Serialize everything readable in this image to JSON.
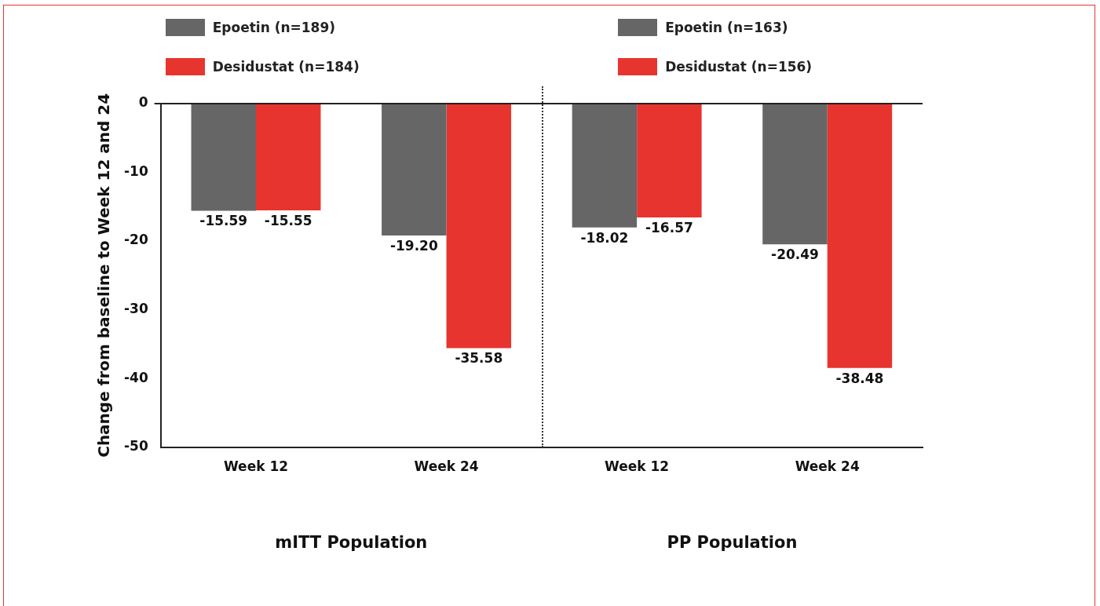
{
  "chart_data": {
    "type": "bar",
    "ylabel": "Change from baseline to Week 12 and 24",
    "categories": [
      "Week 12",
      "Week 24",
      "Week 12",
      "Week 24"
    ],
    "series": [
      {
        "name": "Epoetin (n=189)",
        "color": "#666666",
        "values": [
          -15.59,
          -19.2,
          null,
          null
        ],
        "value_labels": [
          "-15.59",
          "-19.20",
          null,
          null
        ]
      },
      {
        "name": "Desidustat (n=184)",
        "color": "#e8342e",
        "values": [
          -15.55,
          -35.58,
          null,
          null
        ],
        "value_labels": [
          "-15.55",
          "-35.58",
          null,
          null
        ]
      },
      {
        "name": "Epoetin (n=163)",
        "color": "#666666",
        "values": [
          null,
          null,
          -18.02,
          -20.49
        ],
        "value_labels": [
          null,
          null,
          "-18.02",
          "-20.49"
        ]
      },
      {
        "name": "Desidustat (n=156)",
        "color": "#e8342e",
        "values": [
          null,
          null,
          -16.57,
          -38.48
        ],
        "value_labels": [
          null,
          null,
          "-16.57",
          "-38.48"
        ]
      }
    ],
    "ylim": [
      -50,
      0
    ],
    "yticks": [
      0,
      -10,
      -20,
      -30,
      -40,
      -50
    ],
    "grid": false,
    "legend": "top",
    "annotations": [
      "mITT Population",
      "PP Population"
    ]
  }
}
